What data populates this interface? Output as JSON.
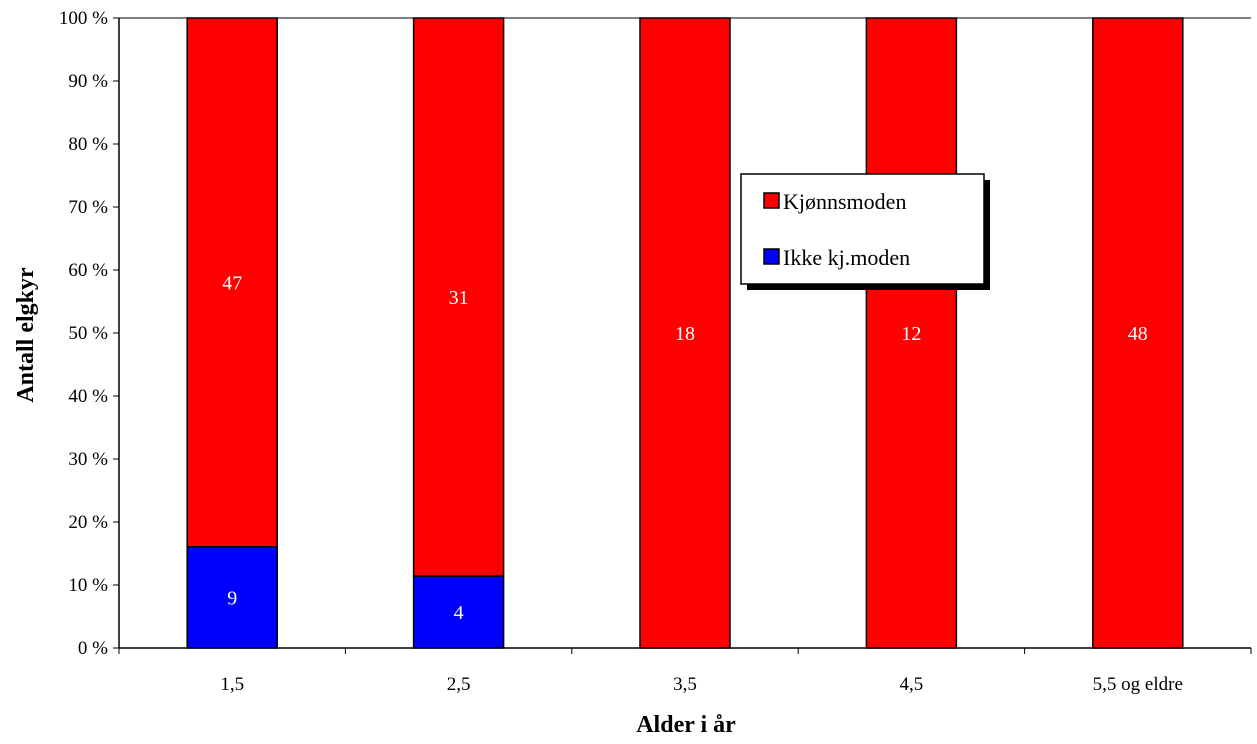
{
  "chart_data": {
    "type": "bar",
    "stacked": "percent",
    "categories": [
      "1,5",
      "2,5",
      "3,5",
      "4,5",
      "5,5 og eldre"
    ],
    "series": [
      {
        "name": "Ikke kj.moden",
        "values": [
          9,
          4,
          0,
          0,
          0
        ],
        "color": "#0000ff"
      },
      {
        "name": "Kjønnsmoden",
        "values": [
          47,
          31,
          18,
          12,
          48
        ],
        "color": "#ff0000"
      }
    ],
    "xlabel": "Alder i år",
    "ylabel": "Antall elgkyr",
    "ylim": [
      0,
      100
    ],
    "yticks": [
      "0 %",
      "10 %",
      "20 %",
      "30 %",
      "40 %",
      "50 %",
      "60 %",
      "70 %",
      "80 %",
      "90 %",
      "100 %"
    ],
    "legend": {
      "position": "center-right",
      "entries": [
        "Kjønnsmoden",
        "Ikke kj.moden"
      ]
    },
    "grid": false
  }
}
